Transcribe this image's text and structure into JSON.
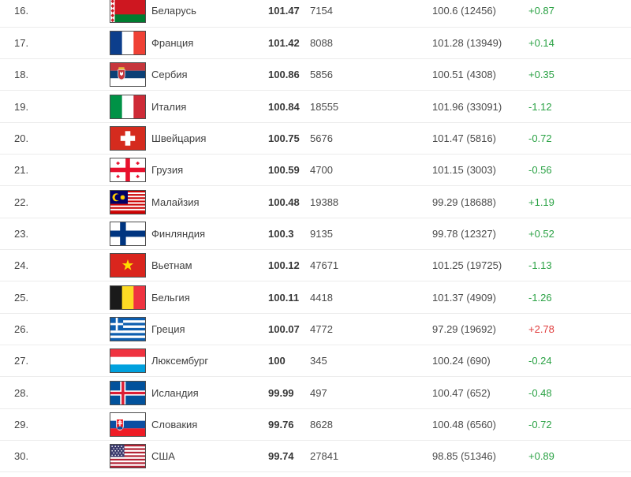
{
  "table": {
    "description": "country index ranking rows 16-30",
    "colors": {
      "green": "#2BA245",
      "red": "#E03C3C"
    },
    "rows": [
      {
        "rank": "16.",
        "flag": "by",
        "flag_icon": "flag-belarus-icon",
        "country": "Беларусь",
        "value": "101.47",
        "volume": "7154",
        "prev": "100.6 (12456)",
        "change": "+0.87",
        "change_color": "green"
      },
      {
        "rank": "17.",
        "flag": "fr",
        "flag_icon": "flag-france-icon",
        "country": "Франция",
        "value": "101.42",
        "volume": "8088",
        "prev": "101.28 (13949)",
        "change": "+0.14",
        "change_color": "green"
      },
      {
        "rank": "18.",
        "flag": "rs",
        "flag_icon": "flag-serbia-icon",
        "country": "Сербия",
        "value": "100.86",
        "volume": "5856",
        "prev": "100.51 (4308)",
        "change": "+0.35",
        "change_color": "green"
      },
      {
        "rank": "19.",
        "flag": "it",
        "flag_icon": "flag-italy-icon",
        "country": "Италия",
        "value": "100.84",
        "volume": "18555",
        "prev": "101.96 (33091)",
        "change": "-1.12",
        "change_color": "green"
      },
      {
        "rank": "20.",
        "flag": "ch",
        "flag_icon": "flag-switzerland-icon",
        "country": "Швейцария",
        "value": "100.75",
        "volume": "5676",
        "prev": "101.47 (5816)",
        "change": "-0.72",
        "change_color": "green"
      },
      {
        "rank": "21.",
        "flag": "ge",
        "flag_icon": "flag-georgia-icon",
        "country": "Грузия",
        "value": "100.59",
        "volume": "4700",
        "prev": "101.15 (3003)",
        "change": "-0.56",
        "change_color": "green"
      },
      {
        "rank": "22.",
        "flag": "my",
        "flag_icon": "flag-malaysia-icon",
        "country": "Малайзия",
        "value": "100.48",
        "volume": "19388",
        "prev": "99.29 (18688)",
        "change": "+1.19",
        "change_color": "green"
      },
      {
        "rank": "23.",
        "flag": "fi",
        "flag_icon": "flag-finland-icon",
        "country": "Финляндия",
        "value": "100.3",
        "volume": "9135",
        "prev": "99.78 (12327)",
        "change": "+0.52",
        "change_color": "green"
      },
      {
        "rank": "24.",
        "flag": "vn",
        "flag_icon": "flag-vietnam-icon",
        "country": "Вьетнам",
        "value": "100.12",
        "volume": "47671",
        "prev": "101.25 (19725)",
        "change": "-1.13",
        "change_color": "green"
      },
      {
        "rank": "25.",
        "flag": "be",
        "flag_icon": "flag-belgium-icon",
        "country": "Бельгия",
        "value": "100.11",
        "volume": "4418",
        "prev": "101.37 (4909)",
        "change": "-1.26",
        "change_color": "green"
      },
      {
        "rank": "26.",
        "flag": "gr",
        "flag_icon": "flag-greece-icon",
        "country": "Греция",
        "value": "100.07",
        "volume": "4772",
        "prev": "97.29 (19692)",
        "change": "+2.78",
        "change_color": "red"
      },
      {
        "rank": "27.",
        "flag": "lu",
        "flag_icon": "flag-luxembourg-icon",
        "country": "Люксембург",
        "value": "100",
        "volume": "345",
        "prev": "100.24 (690)",
        "change": "-0.24",
        "change_color": "green"
      },
      {
        "rank": "28.",
        "flag": "is",
        "flag_icon": "flag-iceland-icon",
        "country": "Исландия",
        "value": "99.99",
        "volume": "497",
        "prev": "100.47 (652)",
        "change": "-0.48",
        "change_color": "green"
      },
      {
        "rank": "29.",
        "flag": "sk",
        "flag_icon": "flag-slovakia-icon",
        "country": "Словакия",
        "value": "99.76",
        "volume": "8628",
        "prev": "100.48 (6560)",
        "change": "-0.72",
        "change_color": "green"
      },
      {
        "rank": "30.",
        "flag": "us",
        "flag_icon": "flag-usa-icon",
        "country": "США",
        "value": "99.74",
        "volume": "27841",
        "prev": "98.85 (51346)",
        "change": "+0.89",
        "change_color": "green"
      }
    ]
  }
}
